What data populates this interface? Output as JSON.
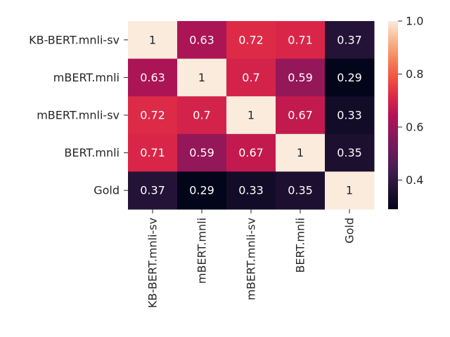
{
  "chart_data": {
    "type": "heatmap",
    "row_labels": [
      "KB-BERT.mnli-sv",
      "mBERT.mnli",
      "mBERT.mnli-sv",
      "BERT.mnli",
      "Gold"
    ],
    "col_labels": [
      "KB-BERT.mnli-sv",
      "mBERT.mnli",
      "mBERT.mnli-sv",
      "BERT.mnli",
      "Gold"
    ],
    "values": [
      [
        1,
        0.63,
        0.72,
        0.71,
        0.37
      ],
      [
        0.63,
        1,
        0.7,
        0.59,
        0.29
      ],
      [
        0.72,
        0.7,
        1,
        0.67,
        0.33
      ],
      [
        0.71,
        0.59,
        0.67,
        1,
        0.35
      ],
      [
        0.37,
        0.29,
        0.33,
        0.35,
        1
      ]
    ],
    "value_labels": [
      [
        "1",
        "0.63",
        "0.72",
        "0.71",
        "0.37"
      ],
      [
        "0.63",
        "1",
        "0.7",
        "0.59",
        "0.29"
      ],
      [
        "0.72",
        "0.7",
        "1",
        "0.67",
        "0.33"
      ],
      [
        "0.71",
        "0.59",
        "0.67",
        "1",
        "0.35"
      ],
      [
        "0.37",
        "0.29",
        "0.33",
        "0.35",
        "1"
      ]
    ],
    "colormap": "rocket",
    "vmin": 0.29,
    "vmax": 1.0,
    "colorbar": {
      "ticks": [
        0.4,
        0.6,
        0.8,
        1.0
      ],
      "tick_labels": [
        "0.4",
        "0.6",
        "0.8",
        "1.0"
      ]
    },
    "colorbar_position": "right",
    "cell_annotations": true,
    "title": "",
    "xlabel": "",
    "ylabel": ""
  }
}
